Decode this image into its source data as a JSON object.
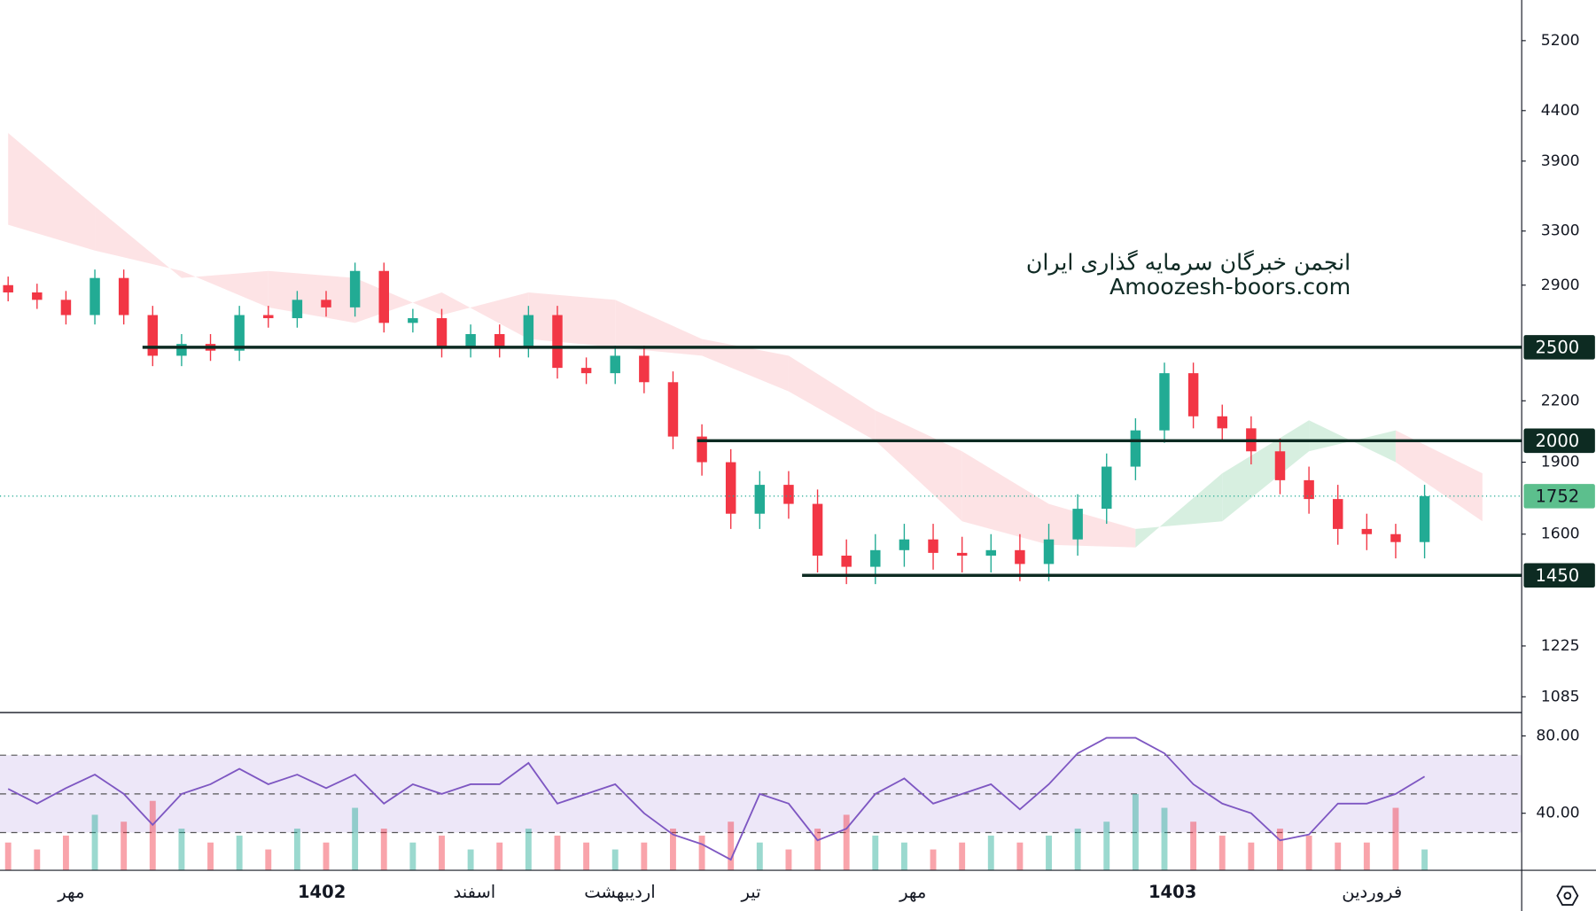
{
  "chart_data": [
    {
      "type": "candlestick",
      "watermark": [
        "انجمن خبرگان سرمایه گذاری ایران",
        "Amoozesh-boors.com"
      ],
      "log_scale": true,
      "ylim": [
        1045,
        5730
      ],
      "yticks": [
        5200,
        4400,
        3900,
        3300,
        2900,
        2200,
        1900,
        1600,
        1225,
        1085
      ],
      "up_color": "#22ab94",
      "down_color": "#f23645",
      "open": [
        2900,
        2850,
        2800,
        2700,
        2950,
        2700,
        2450,
        2520,
        2480,
        2700,
        2680,
        2800,
        2750,
        3000,
        2650,
        2680,
        2500,
        2580,
        2500,
        2700,
        2380,
        2350,
        2450,
        2300,
        2020,
        1900,
        1680,
        1800,
        1720,
        1520,
        1480,
        1540,
        1580,
        1530,
        1520,
        1540,
        1490,
        1580,
        1700,
        1880,
        2050,
        2350,
        2120,
        2060,
        1950,
        1820,
        1740,
        1620,
        1600,
        1570
      ],
      "high": [
        2960,
        2910,
        2860,
        3010,
        3010,
        2760,
        2580,
        2580,
        2760,
        2760,
        2860,
        2860,
        3060,
        3060,
        2740,
        2740,
        2640,
        2640,
        2760,
        2760,
        2440,
        2510,
        2510,
        2360,
        2080,
        1960,
        1860,
        1860,
        1780,
        1580,
        1600,
        1640,
        1640,
        1590,
        1600,
        1600,
        1640,
        1760,
        1940,
        2110,
        2410,
        2410,
        2180,
        2120,
        2010,
        1880,
        1800,
        1680,
        1640,
        1800
      ],
      "low": [
        2790,
        2740,
        2640,
        2640,
        2640,
        2390,
        2390,
        2420,
        2420,
        2620,
        2620,
        2690,
        2690,
        2590,
        2590,
        2440,
        2440,
        2440,
        2440,
        2320,
        2290,
        2290,
        2240,
        1960,
        1840,
        1620,
        1620,
        1660,
        1460,
        1420,
        1420,
        1480,
        1470,
        1460,
        1460,
        1430,
        1430,
        1520,
        1640,
        1820,
        1990,
        2060,
        2000,
        1890,
        1760,
        1680,
        1560,
        1540,
        1510,
        1510
      ],
      "close": [
        2850,
        2800,
        2700,
        2950,
        2700,
        2450,
        2520,
        2480,
        2700,
        2680,
        2800,
        2750,
        3000,
        2650,
        2680,
        2500,
        2580,
        2500,
        2700,
        2380,
        2350,
        2450,
        2300,
        2020,
        1900,
        1680,
        1800,
        1720,
        1520,
        1480,
        1540,
        1580,
        1530,
        1520,
        1540,
        1490,
        1580,
        1700,
        1880,
        2050,
        2350,
        2120,
        2060,
        1950,
        1820,
        1740,
        1620,
        1600,
        1570,
        1752
      ],
      "levels": [
        2500,
        2000,
        1450
      ],
      "level_color": "#0d2b22",
      "cloud": {
        "x": [
          0,
          3,
          6,
          9,
          12,
          15,
          18,
          21,
          24,
          27,
          30,
          33,
          36,
          39,
          42,
          45,
          48,
          51
        ],
        "span_a": [
          3350,
          3150,
          3000,
          2750,
          2650,
          2850,
          2550,
          2500,
          2450,
          2250,
          2000,
          1650,
          1560,
          1550,
          1850,
          2100,
          1900,
          1650
        ],
        "span_b": [
          4170,
          3500,
          2950,
          3000,
          2950,
          2700,
          2850,
          2800,
          2550,
          2450,
          2150,
          1950,
          1720,
          1620,
          1650,
          1950,
          2050,
          1850
        ],
        "bull_color": "#d7efe0",
        "bear_color": "#fde3e5"
      },
      "xticks": [
        {
          "value": 2.18,
          "label": "مهر"
        },
        {
          "value": 10.85,
          "label": "1402"
        },
        {
          "value": 16.13,
          "label": "اسفند"
        },
        {
          "value": 21.16,
          "label": "اردیبهشت"
        },
        {
          "value": 25.7,
          "label": "تیر"
        },
        {
          "value": 31.3,
          "label": "مهر"
        },
        {
          "value": 40.28,
          "label": "1403"
        },
        {
          "value": 47.18,
          "label": "فروردین"
        }
      ]
    },
    {
      "type": "line",
      "color": "#7e57c2",
      "values": [
        52.6,
        45,
        53,
        60,
        50,
        34,
        50,
        55,
        63,
        55,
        60,
        53,
        60,
        45,
        55,
        50,
        55,
        55,
        66,
        45,
        50,
        55,
        40,
        29,
        24,
        16,
        50,
        45,
        26,
        32,
        50,
        58,
        45,
        50,
        55,
        42,
        55,
        71,
        79,
        79,
        71,
        55,
        45,
        40,
        26,
        29,
        45,
        45,
        50,
        59
      ],
      "ylim": [
        10.5,
        92.1
      ],
      "yticks": [
        {
          "value": 40,
          "label": "40.00"
        },
        {
          "value": 80,
          "label": "80.00"
        }
      ],
      "band": [
        30,
        70
      ],
      "midline": 50,
      "band_color": "#ede7f8"
    },
    {
      "type": "bar",
      "values": [
        20,
        15,
        25,
        40,
        35,
        50,
        30,
        20,
        25,
        15,
        30,
        20,
        45,
        30,
        20,
        25,
        15,
        20,
        30,
        25,
        20,
        15,
        20,
        30,
        25,
        35,
        20,
        15,
        30,
        40,
        25,
        20,
        15,
        20,
        25,
        20,
        25,
        30,
        35,
        55,
        45,
        35,
        25,
        20,
        30,
        25,
        20,
        20,
        45,
        15
      ]
    }
  ]
}
